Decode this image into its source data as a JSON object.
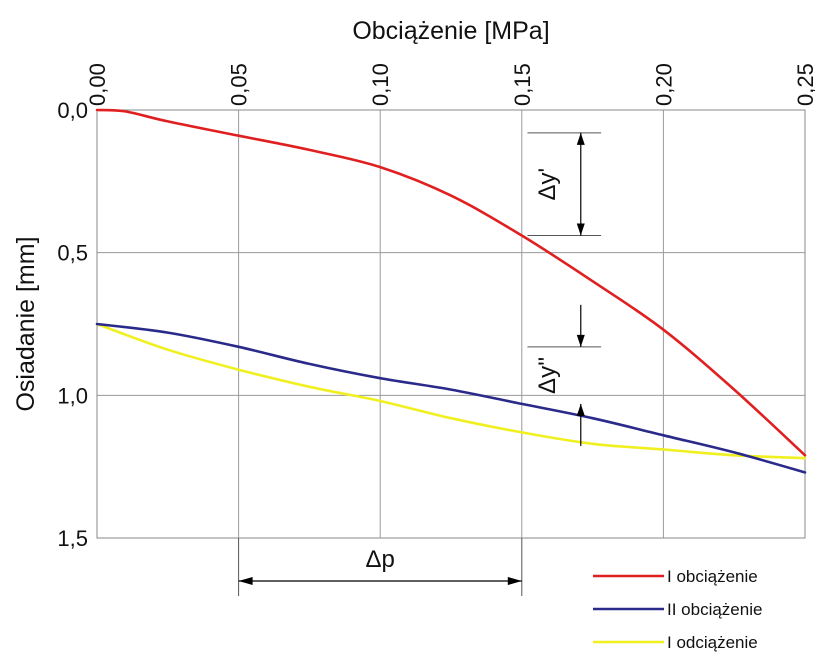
{
  "chart_data": {
    "type": "line",
    "title": "",
    "xlabel": "Obciążenie [MPa]",
    "ylabel": "Osiadanie [mm]",
    "xlim": [
      0,
      0.25
    ],
    "ylim": [
      0,
      1.5
    ],
    "y_inverted": true,
    "x_ticks": [
      "0,00",
      "0,05",
      "0,10",
      "0,15",
      "0,20",
      "0,25"
    ],
    "y_ticks": [
      "0,0",
      "0,5",
      "1,0",
      "1,5"
    ],
    "grid": true,
    "legend_position": "bottom-right",
    "series": [
      {
        "name": "I obciążenie",
        "color": "#e02020",
        "x": [
          0,
          0.01,
          0.025,
          0.05,
          0.075,
          0.1,
          0.125,
          0.15,
          0.175,
          0.2,
          0.225,
          0.25
        ],
        "y": [
          0,
          0.005,
          0.04,
          0.09,
          0.14,
          0.2,
          0.3,
          0.44,
          0.6,
          0.77,
          0.98,
          1.21
        ]
      },
      {
        "name": "II obciążenie",
        "color": "#2a2a8a",
        "x": [
          0,
          0.025,
          0.05,
          0.075,
          0.1,
          0.125,
          0.15,
          0.175,
          0.2,
          0.225,
          0.25
        ],
        "y": [
          0.75,
          0.78,
          0.83,
          0.89,
          0.94,
          0.98,
          1.03,
          1.08,
          1.14,
          1.2,
          1.27
        ]
      },
      {
        "name": "I odciążenie",
        "color": "#f0f020",
        "x": [
          0,
          0.025,
          0.05,
          0.075,
          0.1,
          0.125,
          0.15,
          0.175,
          0.2,
          0.225,
          0.25
        ],
        "y": [
          0.75,
          0.84,
          0.91,
          0.97,
          1.02,
          1.08,
          1.13,
          1.17,
          1.19,
          1.21,
          1.22
        ]
      }
    ],
    "annotations": [
      {
        "text": "Δy'",
        "x": 0.168,
        "y_from": 0.08,
        "y_to": 0.44
      },
      {
        "text": "Δy''",
        "x": 0.168,
        "y_from": 0.83,
        "y_to": 1.03
      },
      {
        "text": "Δp",
        "x_from": 0.05,
        "x_to": 0.15,
        "y": 1.7
      }
    ]
  }
}
